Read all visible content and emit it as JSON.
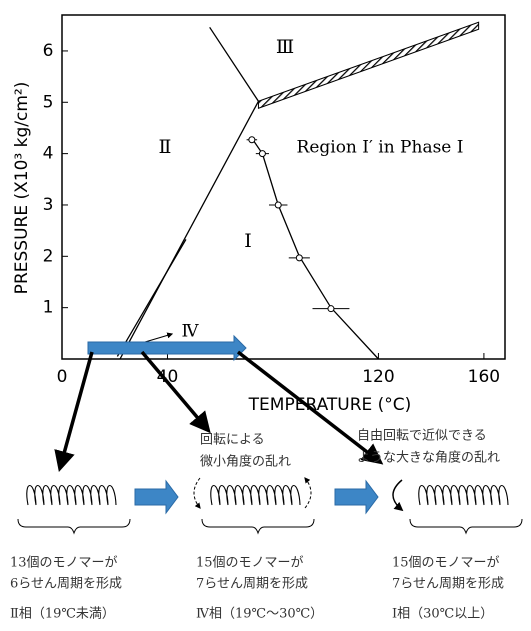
{
  "chart_data": {
    "type": "line",
    "x_label": "TEMPERATURE (°C)",
    "y_label": "PRESSURE (X10³ kg/cm²)",
    "xlim": [
      0,
      168
    ],
    "ylim": [
      0,
      6.7
    ],
    "xticks": [
      0,
      40,
      120,
      160
    ],
    "yticks": [
      1,
      2,
      3,
      4,
      5,
      6
    ],
    "annotations": [
      "Ⅲ",
      "Ⅱ",
      "Region Ⅰ′ in Phase Ⅰ",
      "Ⅰ",
      "Ⅳ"
    ],
    "boundaries": [
      {
        "x": [
          56,
          74.5
        ],
        "y": [
          6.46,
          5.02
        ]
      },
      {
        "x": [
          74.5,
          22
        ],
        "y": [
          5.02,
          0
        ]
      },
      {
        "x": [
          47,
          21
        ],
        "y": [
          2.33,
          0.05
        ]
      },
      {
        "x": [
          72,
          76,
          82,
          90,
          102,
          120
        ],
        "y": [
          4.3,
          4.0,
          3.0,
          2.0,
          1.0,
          0
        ]
      },
      {
        "x": [
          74.5,
          158
        ],
        "y": [
          5.02,
          6.5
        ]
      }
    ],
    "points": {
      "x": [
        72,
        76,
        82,
        90,
        102
      ],
      "y": [
        4.27,
        4.0,
        3.0,
        1.97,
        0.98
      ],
      "xerr": [
        2,
        2.5,
        3.5,
        4,
        7
      ]
    }
  },
  "diagram": {
    "notes": [
      [
        "回転による",
        "微小角度の乱れ"
      ],
      [
        "自由回転で近似できる",
        "ような大きな角度の乱れ"
      ]
    ],
    "phases": [
      {
        "line1": "13個のモノマーが",
        "line2": "6らせん周期を形成",
        "name": "Ⅱ相（19℃未満）"
      },
      {
        "line1": "15個のモノマーが",
        "line2": "7らせん周期を形成",
        "name": "Ⅳ相（19℃～30℃）"
      },
      {
        "line1": "15個のモノマーが",
        "line2": "7らせん周期を形成",
        "name": "Ⅰ相（30℃以上）"
      }
    ]
  }
}
